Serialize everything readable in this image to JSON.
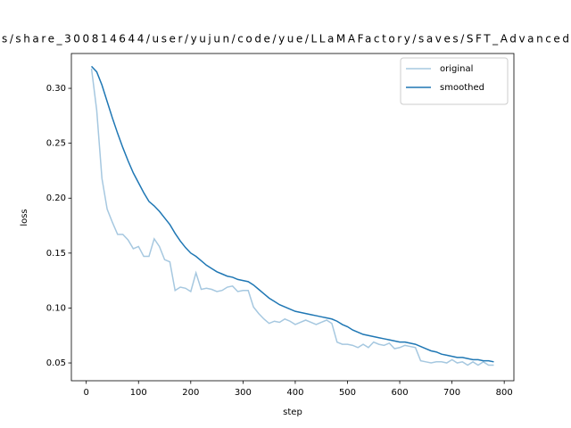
{
  "chart_data": {
    "type": "line",
    "title": "s/share_300814644/user/yujun/code/yue/LLaMAFactory/saves/SFT_Advanced",
    "x_label": "step",
    "y_label": "loss",
    "x": [
      10,
      20,
      30,
      40,
      50,
      60,
      70,
      80,
      90,
      100,
      110,
      120,
      130,
      140,
      150,
      160,
      170,
      180,
      190,
      200,
      210,
      220,
      230,
      240,
      250,
      260,
      270,
      280,
      290,
      300,
      310,
      320,
      330,
      340,
      350,
      360,
      370,
      380,
      390,
      400,
      410,
      420,
      430,
      440,
      450,
      460,
      470,
      480,
      490,
      500,
      510,
      520,
      530,
      540,
      550,
      560,
      570,
      580,
      590,
      600,
      610,
      620,
      630,
      640,
      650,
      660,
      670,
      680,
      690,
      700,
      710,
      720,
      730,
      740,
      750,
      760,
      770,
      780
    ],
    "series": [
      {
        "name": "original",
        "color": "#a6c8e0",
        "values": [
          0.318,
          0.28,
          0.218,
          0.19,
          0.178,
          0.167,
          0.167,
          0.162,
          0.154,
          0.156,
          0.147,
          0.147,
          0.163,
          0.156,
          0.144,
          0.142,
          0.116,
          0.119,
          0.118,
          0.115,
          0.132,
          0.117,
          0.118,
          0.117,
          0.115,
          0.116,
          0.119,
          0.12,
          0.115,
          0.116,
          0.116,
          0.101,
          0.095,
          0.09,
          0.086,
          0.088,
          0.087,
          0.09,
          0.088,
          0.085,
          0.087,
          0.089,
          0.087,
          0.085,
          0.087,
          0.089,
          0.086,
          0.069,
          0.067,
          0.067,
          0.066,
          0.064,
          0.067,
          0.064,
          0.069,
          0.067,
          0.066,
          0.068,
          0.063,
          0.064,
          0.066,
          0.065,
          0.064,
          0.052,
          0.051,
          0.05,
          0.051,
          0.051,
          0.05,
          0.053,
          0.05,
          0.051,
          0.048,
          0.051,
          0.048,
          0.051,
          0.048,
          0.048
        ]
      },
      {
        "name": "smoothed",
        "color": "#1f77b4",
        "values": [
          0.32,
          0.315,
          0.303,
          0.288,
          0.273,
          0.259,
          0.246,
          0.234,
          0.223,
          0.214,
          0.205,
          0.197,
          0.193,
          0.188,
          0.182,
          0.176,
          0.168,
          0.161,
          0.155,
          0.15,
          0.147,
          0.143,
          0.139,
          0.136,
          0.133,
          0.131,
          0.129,
          0.128,
          0.126,
          0.125,
          0.124,
          0.121,
          0.117,
          0.113,
          0.109,
          0.106,
          0.103,
          0.101,
          0.099,
          0.097,
          0.096,
          0.095,
          0.094,
          0.093,
          0.092,
          0.091,
          0.09,
          0.088,
          0.085,
          0.083,
          0.08,
          0.078,
          0.076,
          0.075,
          0.074,
          0.073,
          0.072,
          0.071,
          0.07,
          0.069,
          0.069,
          0.068,
          0.067,
          0.065,
          0.063,
          0.061,
          0.06,
          0.058,
          0.057,
          0.056,
          0.055,
          0.055,
          0.054,
          0.053,
          0.053,
          0.052,
          0.052,
          0.051
        ]
      }
    ],
    "xlim": [
      -28.5,
      818.5
    ],
    "ylim": [
      0.0338,
      0.3317
    ],
    "xticks": [
      0,
      100,
      200,
      300,
      400,
      500,
      600,
      700,
      800
    ],
    "yticks": [
      0.05,
      {
        "value": 0.1,
        "label": "0.10"
      },
      0.15,
      {
        "value": 0.2,
        "label": "0.20"
      },
      0.25,
      {
        "value": 0.3,
        "label": "0.30"
      }
    ],
    "legend": "upper right",
    "grid": false
  }
}
